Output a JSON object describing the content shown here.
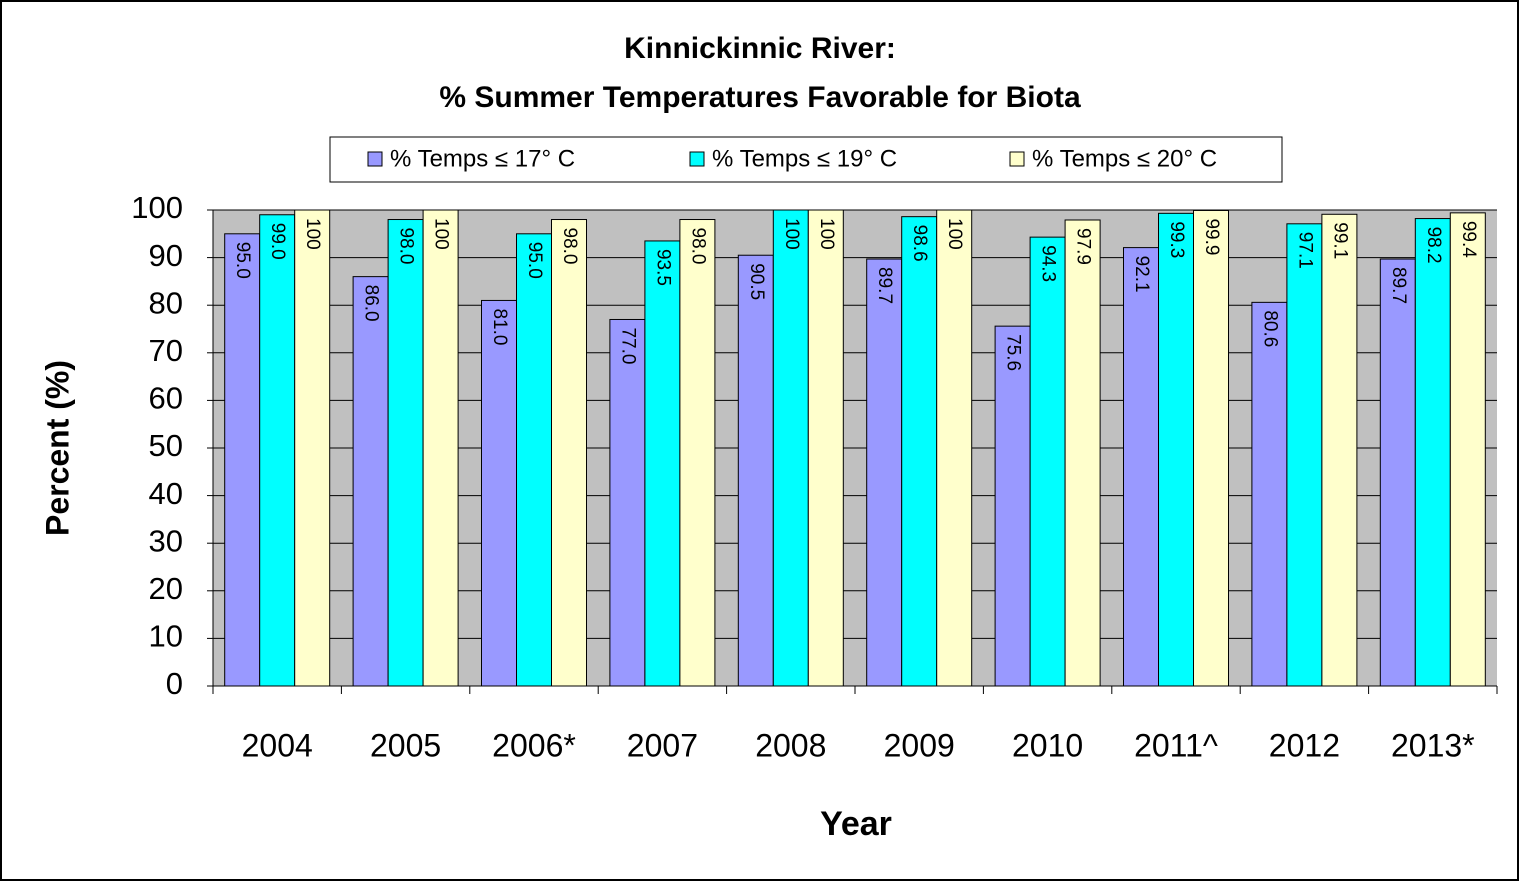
{
  "chart_data": {
    "type": "bar",
    "title": [
      "Kinnickinnic River:",
      "% Summer Temperatures Favorable for Biota"
    ],
    "y_label": "Percent (%)",
    "x_label": "Year",
    "categories": [
      "2004",
      "2005",
      "2006*",
      "2007",
      "2008",
      "2009",
      "2010",
      "2011^",
      "2012",
      "2013*"
    ],
    "series": [
      {
        "name": "% Temps ≤ 17° C",
        "color": "#9999ff",
        "values": [
          95.0,
          86.0,
          81.0,
          77.0,
          90.5,
          89.7,
          75.6,
          92.1,
          80.6,
          89.7
        ],
        "value_labels": [
          "95.0",
          "86.0",
          "81.0",
          "77.0",
          "90.5",
          "89.7",
          "75.6",
          "92.1",
          "80.6",
          "89.7"
        ]
      },
      {
        "name": "% Temps ≤ 19° C",
        "color": "#00ffff",
        "values": [
          99.0,
          98.0,
          95.0,
          93.5,
          100,
          98.6,
          94.3,
          99.3,
          97.1,
          98.2
        ],
        "value_labels": [
          "99.0",
          "98.0",
          "95.0",
          "93.5",
          "100",
          "98.6",
          "94.3",
          "99.3",
          "97.1",
          "98.2"
        ]
      },
      {
        "name": "% Temps ≤ 20° C",
        "color": "#ffffcc",
        "values": [
          100,
          100,
          98.0,
          98.0,
          100,
          100,
          97.9,
          99.9,
          99.1,
          99.4
        ],
        "value_labels": [
          "100",
          "100",
          "98.0",
          "98.0",
          "100",
          "100",
          "97.9",
          "99.9",
          "99.1",
          "99.4"
        ]
      }
    ],
    "ylim": [
      0,
      100
    ],
    "yticks": [
      0,
      10,
      20,
      30,
      40,
      50,
      60,
      70,
      80,
      90,
      100
    ],
    "grid": true,
    "legend": "top",
    "plot_background": "#c0c0c0"
  }
}
